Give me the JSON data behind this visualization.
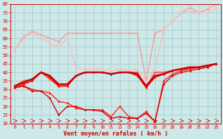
{
  "xlabel": "Vent moyen/en rafales ( km/h )",
  "ylim": [
    10,
    80
  ],
  "xlim": [
    -0.5,
    23.5
  ],
  "yticks": [
    10,
    15,
    20,
    25,
    30,
    35,
    40,
    45,
    50,
    55,
    60,
    65,
    70,
    75,
    80
  ],
  "xticks": [
    0,
    1,
    2,
    3,
    4,
    5,
    6,
    7,
    8,
    9,
    10,
    11,
    12,
    13,
    14,
    15,
    16,
    17,
    18,
    19,
    20,
    21,
    22,
    23
  ],
  "bg_color": "#cce8e8",
  "grid_color": "#aacccc",
  "series": [
    {
      "x": [
        0,
        1,
        2,
        3,
        4,
        5,
        6,
        7,
        8,
        9,
        10,
        11,
        12,
        13,
        14,
        15,
        16,
        17,
        18,
        19,
        20,
        21,
        22,
        23
      ],
      "y": [
        53,
        61,
        64,
        62,
        60,
        58,
        63,
        63,
        63,
        63,
        63,
        63,
        63,
        63,
        63,
        35,
        63,
        65,
        70,
        75,
        78,
        75,
        77,
        80
      ],
      "color": "#ff9999",
      "lw": 1.0,
      "marker": "o",
      "ms": 1.8
    },
    {
      "x": [
        0,
        1,
        2,
        3,
        4,
        5,
        6,
        7,
        8,
        9,
        10,
        11,
        12,
        13,
        14,
        15,
        16,
        17,
        18,
        19,
        20,
        21,
        22,
        23
      ],
      "y": [
        53,
        60,
        63,
        60,
        57,
        55,
        60,
        42,
        42,
        42,
        42,
        41,
        42,
        41,
        42,
        35,
        42,
        65,
        70,
        75,
        76,
        75,
        75,
        78
      ],
      "color": "#ffbbbb",
      "lw": 1.0,
      "marker": "o",
      "ms": 1.8
    },
    {
      "x": [
        0,
        1,
        2,
        3,
        4,
        5,
        6,
        7,
        8,
        9,
        10,
        11,
        12,
        13,
        14,
        15,
        16,
        17,
        18,
        19,
        20,
        21,
        22,
        23
      ],
      "y": [
        32,
        35,
        36,
        40,
        36,
        32,
        32,
        38,
        40,
        40,
        40,
        39,
        40,
        40,
        40,
        31,
        40,
        40,
        41,
        42,
        42,
        43,
        44,
        45
      ],
      "color": "#ee5555",
      "lw": 1.3,
      "marker": "o",
      "ms": 1.8
    },
    {
      "x": [
        0,
        1,
        2,
        3,
        4,
        5,
        6,
        7,
        8,
        9,
        10,
        11,
        12,
        13,
        14,
        15,
        16,
        17,
        18,
        19,
        20,
        21,
        22,
        23
      ],
      "y": [
        32,
        34,
        36,
        40,
        38,
        33,
        33,
        38,
        40,
        40,
        40,
        39,
        40,
        40,
        39,
        32,
        38,
        39,
        41,
        42,
        43,
        43,
        44,
        45
      ],
      "color": "#cc0000",
      "lw": 1.8,
      "marker": null,
      "ms": 0
    },
    {
      "x": [
        0,
        1,
        2,
        3,
        4,
        5,
        6,
        7,
        8,
        9,
        10,
        11,
        12,
        13,
        14,
        15,
        16,
        17,
        18,
        19,
        20,
        21,
        22,
        23
      ],
      "y": [
        31,
        33,
        35,
        40,
        37,
        32,
        32,
        38,
        40,
        40,
        40,
        39,
        40,
        40,
        38,
        31,
        37,
        39,
        41,
        42,
        43,
        43,
        44,
        45
      ],
      "color": "#ff0000",
      "lw": 1.0,
      "marker": "o",
      "ms": 1.8
    },
    {
      "x": [
        0,
        1,
        2,
        3,
        4,
        5,
        6,
        7,
        8,
        9,
        10,
        11,
        12,
        13,
        14,
        15,
        16,
        17,
        18,
        19,
        20,
        21,
        22,
        23
      ],
      "y": [
        31,
        32,
        30,
        29,
        28,
        23,
        22,
        19,
        18,
        18,
        18,
        14,
        20,
        14,
        13,
        17,
        11,
        35,
        39,
        41,
        42,
        43,
        44,
        45
      ],
      "color": "#ff2222",
      "lw": 1.0,
      "marker": "o",
      "ms": 1.8
    },
    {
      "x": [
        0,
        1,
        2,
        3,
        4,
        5,
        6,
        7,
        8,
        9,
        10,
        11,
        12,
        13,
        14,
        15,
        16,
        17,
        18,
        19,
        20,
        21,
        22,
        23
      ],
      "y": [
        31,
        32,
        29,
        29,
        25,
        15,
        20,
        20,
        18,
        18,
        17,
        13,
        14,
        13,
        13,
        16,
        11,
        33,
        38,
        40,
        41,
        42,
        43,
        45
      ],
      "color": "#dd0000",
      "lw": 1.0,
      "marker": "o",
      "ms": 1.8
    }
  ]
}
